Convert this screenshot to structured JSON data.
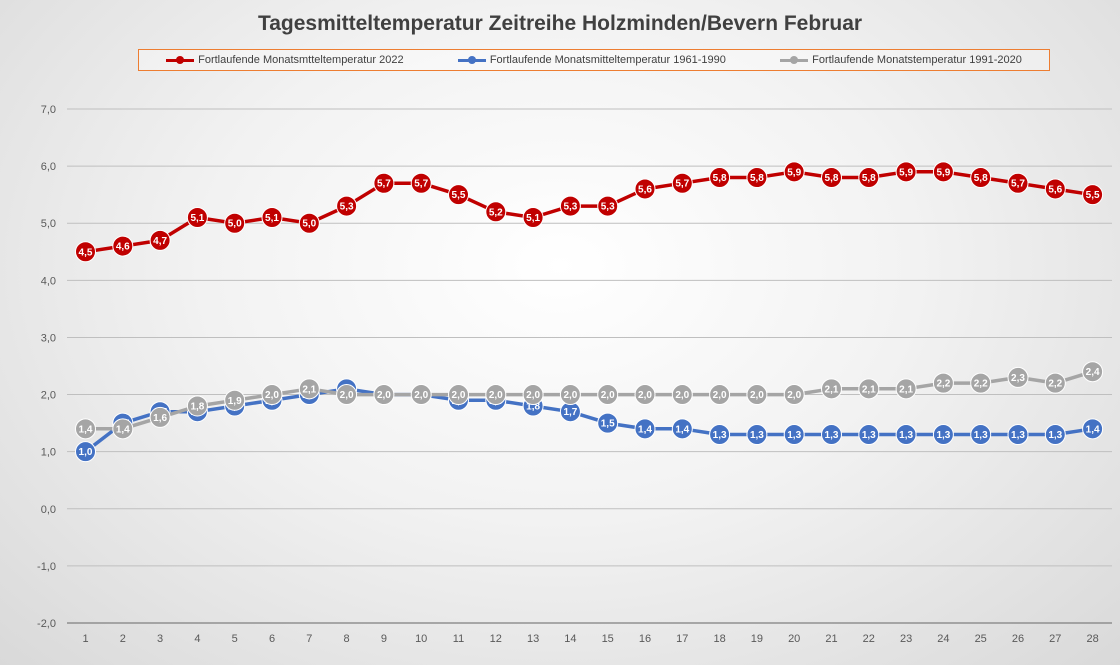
{
  "chart_data": {
    "type": "line",
    "title": "Tagesmitteltemperatur Zeitreihe Holzminden/Bevern Februar",
    "xlabel": "",
    "ylabel": "",
    "x": [
      1,
      2,
      3,
      4,
      5,
      6,
      7,
      8,
      9,
      10,
      11,
      12,
      13,
      14,
      15,
      16,
      17,
      18,
      19,
      20,
      21,
      22,
      23,
      24,
      25,
      26,
      27,
      28
    ],
    "ylim": [
      -2.0,
      7.0
    ],
    "yticks": [
      -2.0,
      -1.0,
      0.0,
      1.0,
      2.0,
      3.0,
      4.0,
      5.0,
      6.0,
      7.0
    ],
    "ytick_labels": [
      "-2,0",
      "-1,0",
      "0,0",
      "1,0",
      "2,0",
      "3,0",
      "4,0",
      "5,0",
      "6,0",
      "7,0"
    ],
    "grid": true,
    "legend_position": "top",
    "series": [
      {
        "name": "Fortlaufende Monatsmtteltemperatur 2022",
        "color": "#c00000",
        "values": [
          4.5,
          4.6,
          4.7,
          5.1,
          5.0,
          5.1,
          5.0,
          5.3,
          5.7,
          5.7,
          5.5,
          5.2,
          5.1,
          5.3,
          5.3,
          5.6,
          5.7,
          5.8,
          5.8,
          5.9,
          5.8,
          5.8,
          5.9,
          5.9,
          5.8,
          5.7,
          5.6,
          5.5
        ]
      },
      {
        "name": "Fortlaufende Monatsmitteltemperatur 1961-1990",
        "color": "#4472c4",
        "values": [
          1.0,
          1.5,
          1.7,
          1.7,
          1.8,
          1.9,
          2.0,
          2.1,
          2.0,
          2.0,
          1.9,
          1.9,
          1.8,
          1.7,
          1.5,
          1.4,
          1.4,
          1.3,
          1.3,
          1.3,
          1.3,
          1.3,
          1.3,
          1.3,
          1.3,
          1.3,
          1.3,
          1.4
        ]
      },
      {
        "name": "Fortlaufende Monatstemperatur 1991-2020",
        "color": "#a5a5a5",
        "values": [
          1.4,
          1.4,
          1.6,
          1.8,
          1.9,
          2.0,
          2.1,
          2.0,
          2.0,
          2.0,
          2.0,
          2.0,
          2.0,
          2.0,
          2.0,
          2.0,
          2.0,
          2.0,
          2.0,
          2.0,
          2.1,
          2.1,
          2.1,
          2.2,
          2.2,
          2.3,
          2.2,
          2.4
        ]
      }
    ]
  }
}
